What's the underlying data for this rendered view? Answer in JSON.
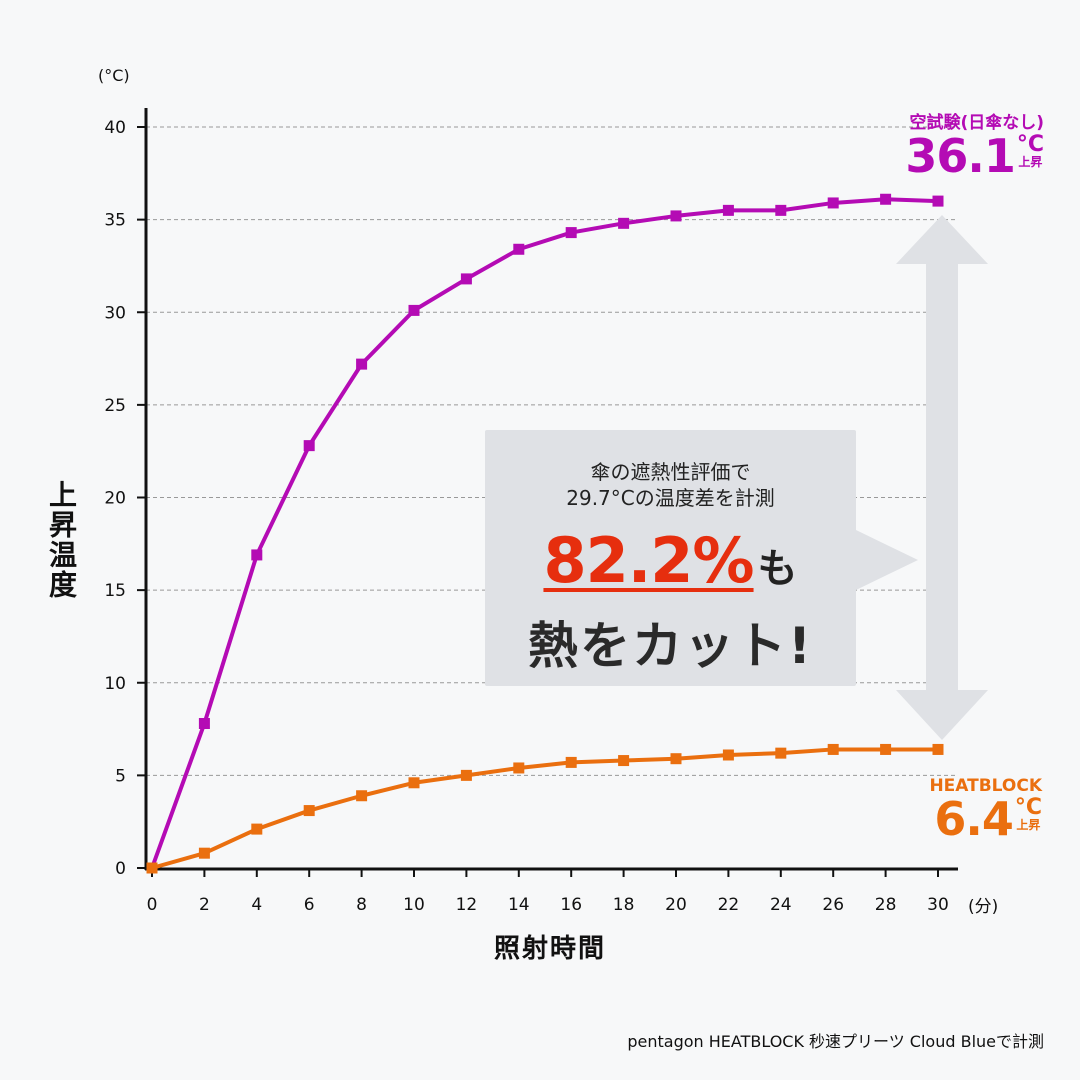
{
  "chart_data": {
    "type": "line",
    "x": [
      0,
      2,
      4,
      6,
      8,
      10,
      12,
      14,
      16,
      18,
      20,
      22,
      24,
      26,
      28,
      30
    ],
    "xticks": [
      "0",
      "2",
      "4",
      "6",
      "8",
      "10",
      "12",
      "14",
      "16",
      "18",
      "20",
      "22",
      "24",
      "26",
      "28",
      "30"
    ],
    "yticks": [
      "0",
      "5",
      "10",
      "15",
      "20",
      "25",
      "30",
      "35",
      "40"
    ],
    "xlim": [
      0,
      30
    ],
    "ylim": [
      0,
      40
    ],
    "xlabel": "照射時間",
    "ylabel": "上昇温度",
    "x_unit": "(分)",
    "y_unit": "(°C)",
    "grid": "horizontal dashed",
    "series": [
      {
        "name": "空試験(日傘なし)",
        "color": "#b40bb4",
        "values": [
          0,
          7.8,
          16.9,
          22.8,
          27.2,
          30.1,
          31.8,
          33.4,
          34.3,
          34.8,
          35.2,
          35.5,
          35.5,
          35.9,
          36.1,
          36.0
        ]
      },
      {
        "name": "HEATBLOCK",
        "color": "#ea6f0f",
        "values": [
          0,
          0.8,
          2.1,
          3.1,
          3.9,
          4.6,
          5.0,
          5.4,
          5.7,
          5.8,
          5.9,
          6.1,
          6.2,
          6.4,
          6.4,
          6.4
        ]
      }
    ],
    "annotations": {
      "control": {
        "name": "空試験(日傘なし)",
        "value": "36.1",
        "unit": "°C",
        "rise": "上昇"
      },
      "heatblock": {
        "name": "HEATBLOCK",
        "value": "6.4",
        "unit": "°C",
        "rise": "上昇"
      },
      "callout": {
        "line1": "傘の遮熱性評価で",
        "line2": "29.7°Cの温度差を計測",
        "percent": "82.2%",
        "suffix": "も",
        "line4": "熱をカット!"
      }
    },
    "footnote": "pentagon HEATBLOCK 秒速プリーツ Cloud Blueで計測"
  },
  "colors": {
    "background": "#f7f8f9",
    "axis": "#111111",
    "grid": "#999999",
    "arrow": "#dfe1e5",
    "accent_red": "#e62e0e"
  }
}
